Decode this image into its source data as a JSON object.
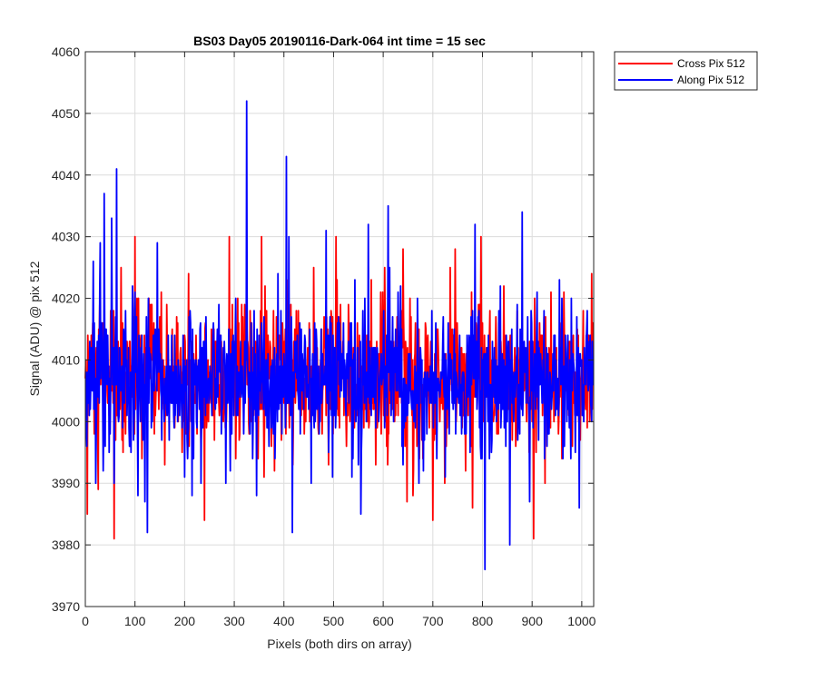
{
  "chart_data": {
    "type": "line",
    "title": "BS03 Day05 20190116-Dark-064 int time = 15 sec",
    "xlabel": "Pixels (both dirs on array)",
    "ylabel": "Signal (ADU) @ pix 512",
    "xlim": [
      0,
      1024
    ],
    "ylim": [
      3970,
      4060
    ],
    "xticks": [
      0,
      100,
      200,
      300,
      400,
      500,
      600,
      700,
      800,
      900,
      1000
    ],
    "yticks": [
      3970,
      3980,
      3990,
      4000,
      4010,
      4020,
      4030,
      4040,
      4050,
      4060
    ],
    "grid": true,
    "legend_location": "outside-top-right",
    "series": [
      {
        "name": "Cross Pix 512",
        "color": "#ff0000",
        "noise": {
          "n_points": 1024,
          "mean": 4007,
          "std": 6
        },
        "x": [
          4,
          26,
          58,
          72,
          100,
          106,
          240,
          290,
          355,
          460,
          505,
          640,
          648,
          660,
          700,
          745,
          780,
          797,
          903,
          1020
        ],
        "y": [
          3985,
          3989,
          3981,
          4025,
          4030,
          3998,
          3984,
          4030,
          4030,
          4025,
          4030,
          4028,
          3987,
          3988,
          3984,
          4028,
          3986,
          4030,
          3981,
          4024
        ]
      },
      {
        "name": "Along Pix 512",
        "color": "#0000ff",
        "noise": {
          "n_points": 1024,
          "mean": 4007,
          "std": 6
        },
        "x": [
          3,
          16,
          30,
          38,
          53,
          58,
          63,
          106,
          120,
          125,
          145,
          200,
          215,
          325,
          345,
          405,
          410,
          417,
          485,
          555,
          570,
          610,
          640,
          785,
          805,
          855,
          880,
          895,
          925,
          995
        ],
        "y": [
          3996,
          4026,
          4029,
          4037,
          4033,
          3990,
          4041,
          3988,
          3987,
          3982,
          4029,
          3991,
          3988,
          4052,
          3988,
          4043,
          4030,
          3982,
          4031,
          3985,
          4032,
          4035,
          3993,
          4032,
          3976,
          3980,
          4034,
          3987,
          3994,
          3986
        ]
      }
    ]
  },
  "legend": {
    "items": [
      {
        "label": "Cross Pix 512",
        "color": "#ff0000"
      },
      {
        "label": "Along Pix 512",
        "color": "#0000ff"
      }
    ]
  }
}
